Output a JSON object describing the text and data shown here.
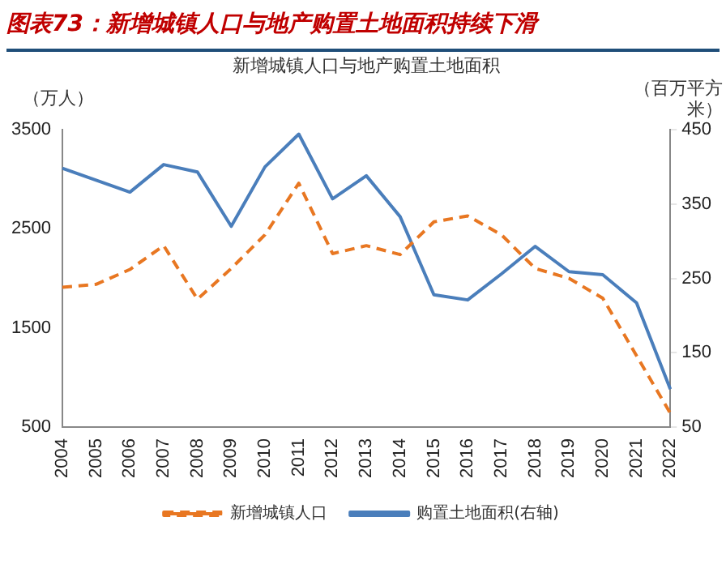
{
  "chart_data": {
    "type": "line",
    "title": "图表73：新增城镇人口与地产购置土地面积持续下滑",
    "subtitle": "新增城镇人口与地产购置土地面积",
    "ylabel": "（万人）",
    "y2label": "（百万平方米）",
    "categories": [
      "2004",
      "2005",
      "2006",
      "2007",
      "2008",
      "2009",
      "2010",
      "2011",
      "2012",
      "2013",
      "2014",
      "2015",
      "2016",
      "2017",
      "2018",
      "2019",
      "2020",
      "2021",
      "2022"
    ],
    "series": [
      {
        "name": "新增城镇人口",
        "color": "#e87722",
        "line_style": "dashed",
        "values": [
          1910,
          1940,
          2090,
          2330,
          1790,
          2100,
          2440,
          2960,
          2250,
          2330,
          2240,
          2570,
          2630,
          2440,
          2100,
          2000,
          1800,
          1220,
          640
        ]
      },
      {
        "name": "购置土地面积(右轴)",
        "color": "#4a7ebb",
        "line_style": "solid",
        "axis": "y2",
        "values": [
          398,
          382,
          366,
          403,
          393,
          320,
          400,
          444,
          357,
          388,
          333,
          228,
          221,
          256,
          293,
          259,
          255,
          217,
          101
        ]
      }
    ],
    "ylim": [
      500,
      3500
    ],
    "yticks": [
      500,
      1500,
      2500,
      3500
    ],
    "y2lim": [
      50,
      450
    ],
    "y2ticks": [
      50,
      150,
      250,
      350,
      450
    ],
    "grid": false,
    "legend": "bottom",
    "marker": "none"
  }
}
